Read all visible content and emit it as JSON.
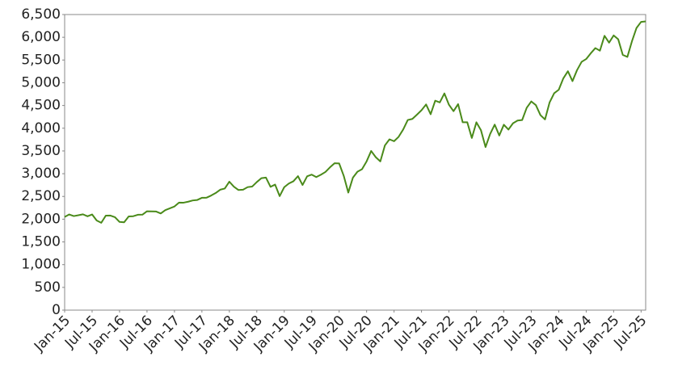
{
  "chart_data": {
    "type": "line",
    "color": "#4a8a1a",
    "x": [
      "2015-01",
      "2015-02",
      "2015-03",
      "2015-04",
      "2015-05",
      "2015-06",
      "2015-07",
      "2015-08",
      "2015-09",
      "2015-10",
      "2015-11",
      "2015-12",
      "2016-01",
      "2016-02",
      "2016-03",
      "2016-04",
      "2016-05",
      "2016-06",
      "2016-07",
      "2016-08",
      "2016-09",
      "2016-10",
      "2016-11",
      "2016-12",
      "2017-01",
      "2017-02",
      "2017-03",
      "2017-04",
      "2017-05",
      "2017-06",
      "2017-07",
      "2017-08",
      "2017-09",
      "2017-10",
      "2017-11",
      "2017-12",
      "2018-01",
      "2018-02",
      "2018-03",
      "2018-04",
      "2018-05",
      "2018-06",
      "2018-07",
      "2018-08",
      "2018-09",
      "2018-10",
      "2018-11",
      "2018-12",
      "2019-01",
      "2019-02",
      "2019-03",
      "2019-04",
      "2019-05",
      "2019-06",
      "2019-07",
      "2019-08",
      "2019-09",
      "2019-10",
      "2019-11",
      "2019-12",
      "2020-01",
      "2020-02",
      "2020-03",
      "2020-04",
      "2020-05",
      "2020-06",
      "2020-07",
      "2020-08",
      "2020-09",
      "2020-10",
      "2020-11",
      "2020-12",
      "2021-01",
      "2021-02",
      "2021-03",
      "2021-04",
      "2021-05",
      "2021-06",
      "2021-07",
      "2021-08",
      "2021-09",
      "2021-10",
      "2021-11",
      "2021-12",
      "2022-01",
      "2022-02",
      "2022-03",
      "2022-04",
      "2022-05",
      "2022-06",
      "2022-07",
      "2022-08",
      "2022-09",
      "2022-10",
      "2022-11",
      "2022-12",
      "2023-01",
      "2023-02",
      "2023-03",
      "2023-04",
      "2023-05",
      "2023-06",
      "2023-07",
      "2023-08",
      "2023-09",
      "2023-10",
      "2023-11",
      "2023-12",
      "2024-01",
      "2024-02",
      "2024-03",
      "2024-04",
      "2024-05",
      "2024-06",
      "2024-07",
      "2024-08",
      "2024-09",
      "2024-10",
      "2024-11",
      "2024-12",
      "2025-01",
      "2025-02",
      "2025-03",
      "2025-04",
      "2025-05",
      "2025-06",
      "2025-07",
      "2025-08"
    ],
    "values": [
      2050,
      2104,
      2068,
      2086,
      2107,
      2063,
      2104,
      1972,
      1920,
      2079,
      2080,
      2044,
      1940,
      1932,
      2060,
      2065,
      2097,
      2099,
      2174,
      2171,
      2168,
      2126,
      2199,
      2239,
      2279,
      2364,
      2363,
      2384,
      2412,
      2423,
      2470,
      2472,
      2519,
      2575,
      2648,
      2674,
      2824,
      2714,
      2641,
      2648,
      2705,
      2718,
      2816,
      2902,
      2914,
      2712,
      2760,
      2507,
      2704,
      2784,
      2834,
      2946,
      2752,
      2942,
      2980,
      2926,
      2977,
      3038,
      3141,
      3231,
      3226,
      2954,
      2585,
      2912,
      3044,
      3100,
      3271,
      3500,
      3363,
      3270,
      3622,
      3756,
      3714,
      3811,
      3973,
      4181,
      4204,
      4298,
      4395,
      4523,
      4308,
      4605,
      4567,
      4766,
      4516,
      4374,
      4530,
      4132,
      4132,
      3785,
      4130,
      3955,
      3586,
      3872,
      4080,
      3840,
      4077,
      3970,
      4109,
      4169,
      4180,
      4450,
      4589,
      4508,
      4288,
      4194,
      4568,
      4770,
      4846,
      5096,
      5254,
      5036,
      5278,
      5460,
      5522,
      5648,
      5762,
      5705,
      6032,
      5882,
      6041,
      5955,
      5612,
      5569,
      5912,
      6205,
      6339,
      6350
    ],
    "xlim": [
      "2015-01",
      "2025-08"
    ],
    "xticks": [
      {
        "value": "2015-01",
        "label": "Jan-15"
      },
      {
        "value": "2015-07",
        "label": "Jul-15"
      },
      {
        "value": "2016-01",
        "label": "Jan-16"
      },
      {
        "value": "2016-07",
        "label": "Jul-16"
      },
      {
        "value": "2017-01",
        "label": "Jan-17"
      },
      {
        "value": "2017-07",
        "label": "Jul-17"
      },
      {
        "value": "2018-01",
        "label": "Jan-18"
      },
      {
        "value": "2018-07",
        "label": "Jul-18"
      },
      {
        "value": "2019-01",
        "label": "Jan-19"
      },
      {
        "value": "2019-07",
        "label": "Jul-19"
      },
      {
        "value": "2020-01",
        "label": "Jan-20"
      },
      {
        "value": "2020-07",
        "label": "Jul-20"
      },
      {
        "value": "2021-01",
        "label": "Jan-21"
      },
      {
        "value": "2021-07",
        "label": "Jul-21"
      },
      {
        "value": "2022-01",
        "label": "Jan-22"
      },
      {
        "value": "2022-07",
        "label": "Jul-22"
      },
      {
        "value": "2023-01",
        "label": "Jan-23"
      },
      {
        "value": "2023-07",
        "label": "Jul-23"
      },
      {
        "value": "2024-01",
        "label": "Jan-24"
      },
      {
        "value": "2024-07",
        "label": "Jul-24"
      },
      {
        "value": "2025-01",
        "label": "Jan-25"
      },
      {
        "value": "2025-07",
        "label": "Jul-25"
      }
    ],
    "ylim": [
      0,
      6500
    ],
    "yticks": [
      0,
      500,
      {
        "value": 1000,
        "label": "1,000"
      },
      {
        "value": 1500,
        "label": "1,500"
      },
      {
        "value": 2000,
        "label": "2,000"
      },
      {
        "value": 2500,
        "label": "2,500"
      },
      {
        "value": 3000,
        "label": "3,000"
      },
      {
        "value": 3500,
        "label": "3,500"
      },
      {
        "value": 4000,
        "label": "4,000"
      },
      {
        "value": 4500,
        "label": "4,500"
      },
      {
        "value": 5000,
        "label": "5,000"
      },
      {
        "value": 5500,
        "label": "5,500"
      },
      {
        "value": 6000,
        "label": "6,000"
      },
      {
        "value": 6500,
        "label": "6,500"
      }
    ],
    "grid": false
  }
}
